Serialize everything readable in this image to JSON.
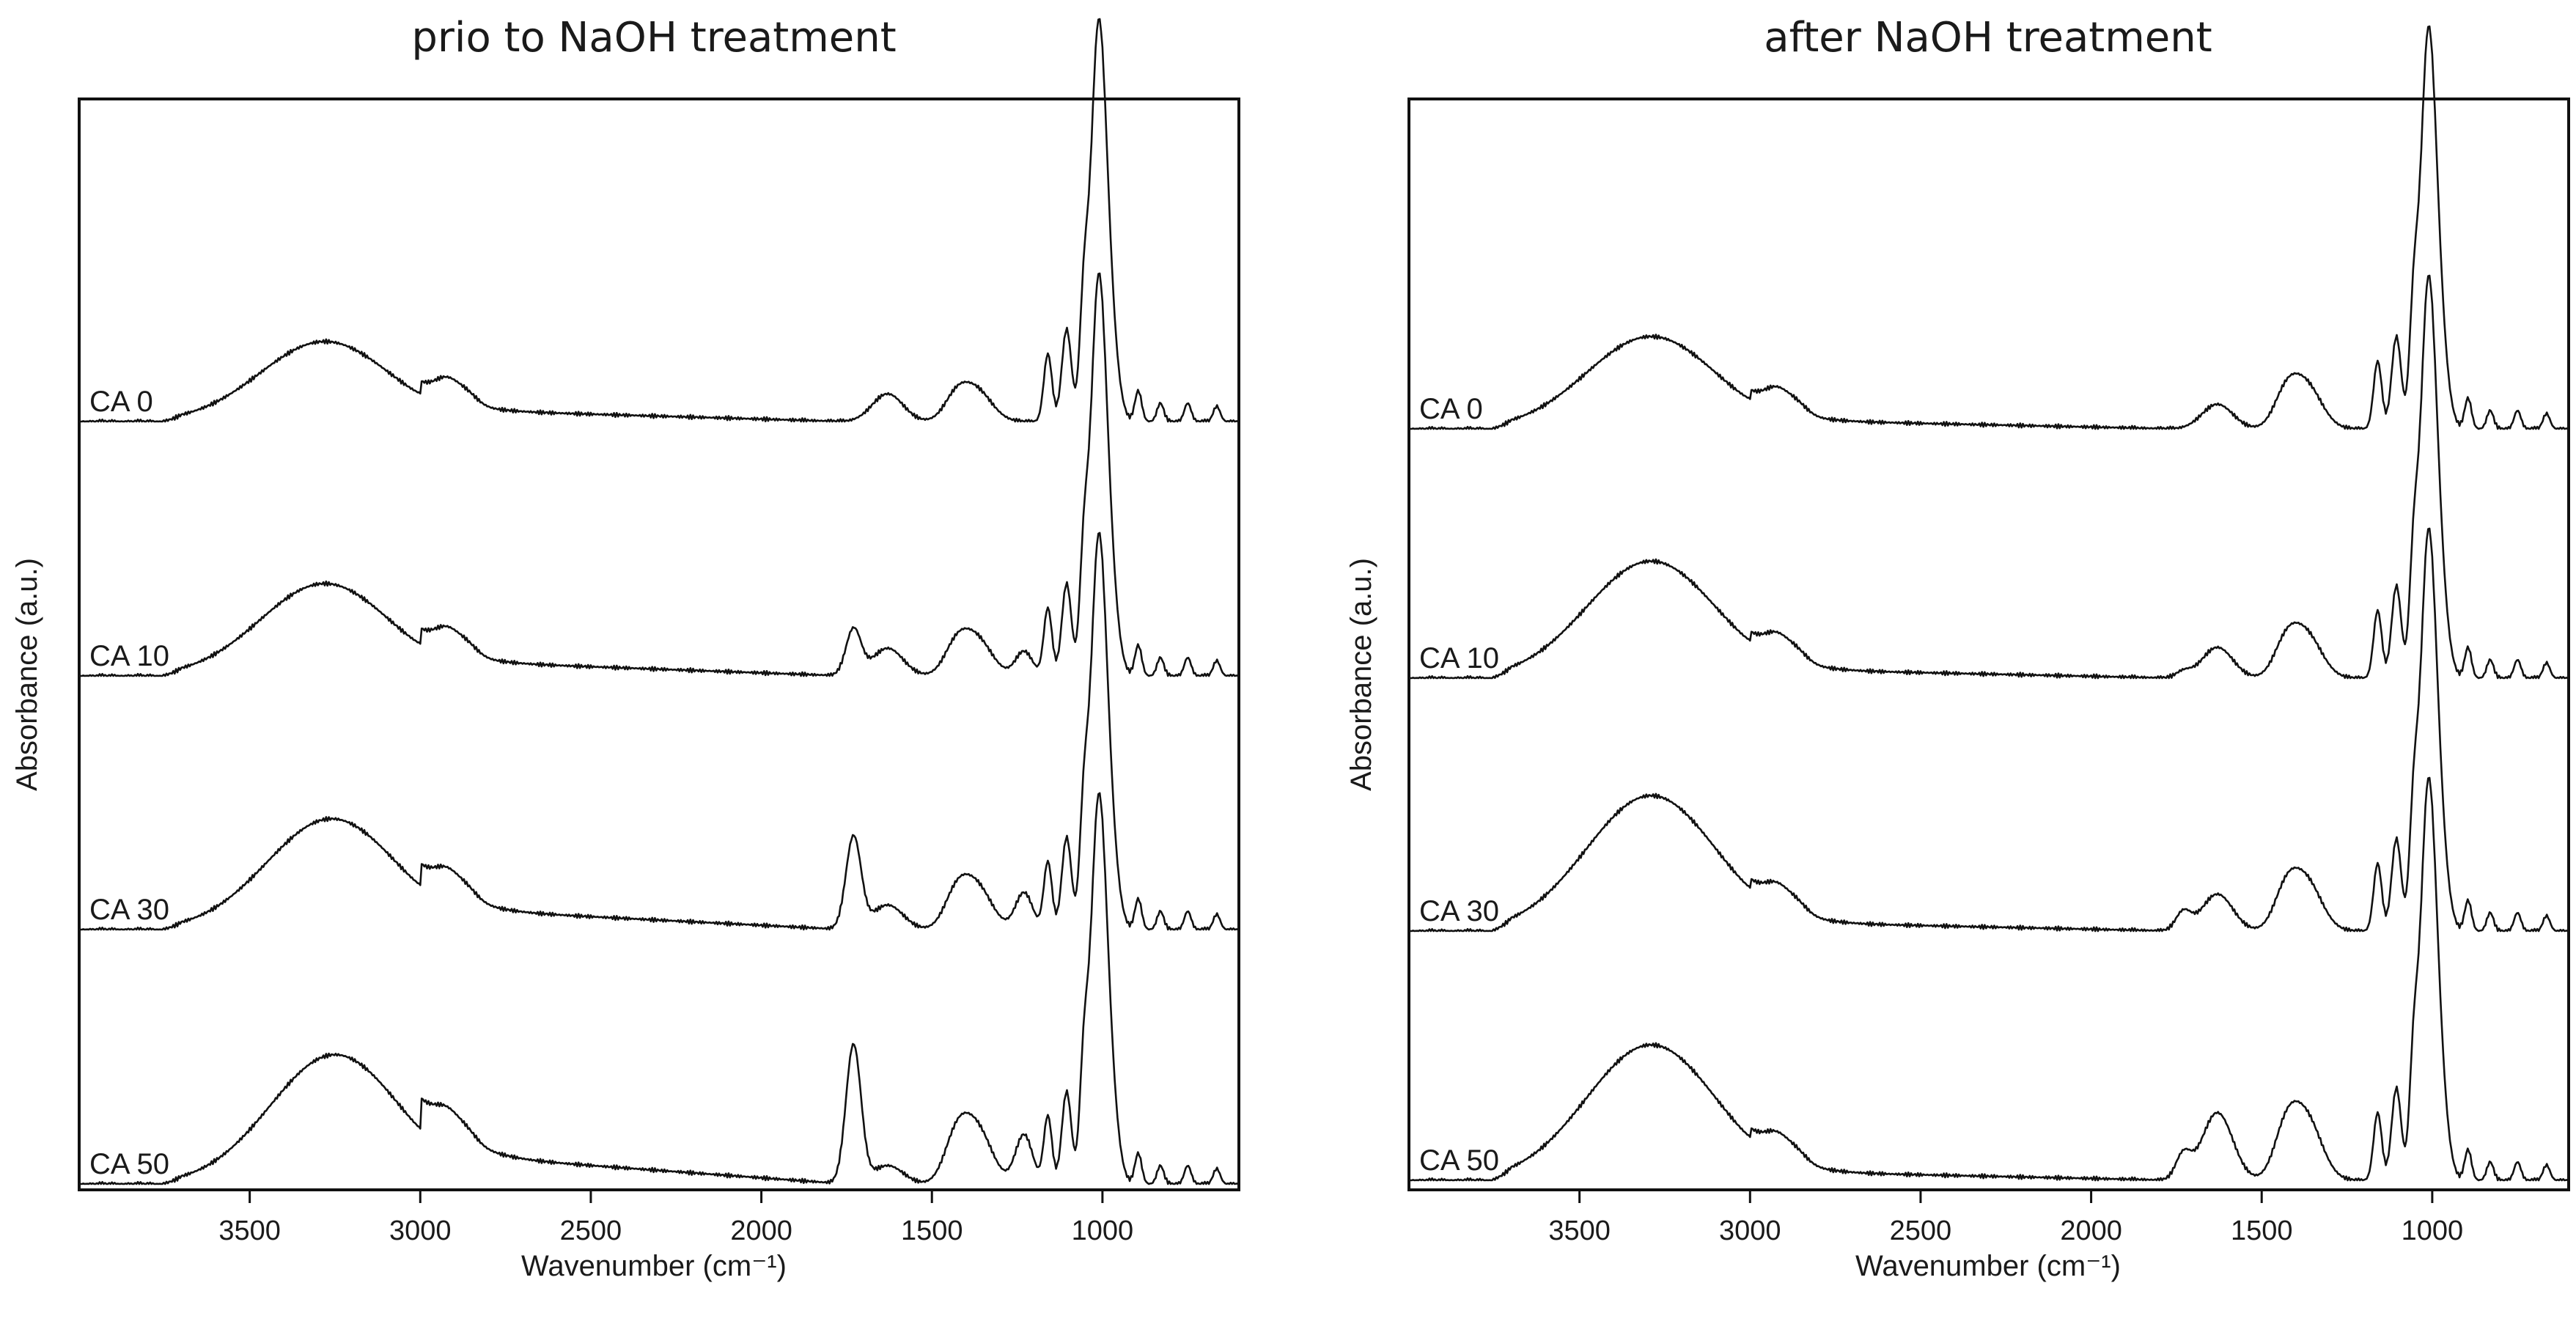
{
  "chart_data": [
    {
      "type": "line",
      "panel": "left",
      "title": "prio to NaOH treatment",
      "xlabel": "Wavenumber (cm⁻¹)",
      "ylabel": "Absorbance (a.u.)",
      "xlim": [
        4000,
        600
      ],
      "x_reversed": true,
      "xticks": [
        3500,
        3000,
        2500,
        2000,
        1500,
        1000
      ],
      "yticks": [],
      "series": [
        {
          "name": "CA 0",
          "acetyl": 0.0,
          "scale": 1.0,
          "oh": 0.26,
          "oh_center": 3280,
          "slope": 0.08,
          "band1230": 0.0,
          "band1370": 0.1,
          "band1640": 0.09,
          "main": 1.0
        },
        {
          "name": "CA 10",
          "acetyl": 0.15,
          "scale": 1.0,
          "oh": 0.3,
          "oh_center": 3280,
          "slope": 0.1,
          "band1230": 0.08,
          "band1370": 0.12,
          "band1640": 0.09,
          "main": 1.0
        },
        {
          "name": "CA 30",
          "acetyl": 0.3,
          "scale": 1.0,
          "oh": 0.36,
          "oh_center": 3260,
          "slope": 0.14,
          "band1230": 0.12,
          "band1370": 0.14,
          "band1640": 0.08,
          "main": 0.98
        },
        {
          "name": "CA 50",
          "acetyl": 0.45,
          "scale": 1.0,
          "oh": 0.42,
          "oh_center": 3250,
          "slope": 0.2,
          "band1230": 0.16,
          "band1370": 0.18,
          "band1640": 0.06,
          "main": 0.96
        }
      ]
    },
    {
      "type": "line",
      "panel": "right",
      "title": "after NaOH treatment",
      "xlabel": "Wavenumber (cm⁻¹)",
      "ylabel": "Absorbance (a.u.)",
      "xlim": [
        4000,
        600
      ],
      "x_reversed": true,
      "xticks": [
        3500,
        3000,
        2500,
        2000,
        1500,
        1000
      ],
      "yticks": [],
      "series": [
        {
          "name": "CA 0",
          "acetyl": 0.0,
          "scale": 1.0,
          "oh": 0.3,
          "oh_center": 3290,
          "slope": 0.06,
          "band1230": 0.0,
          "band1370": 0.14,
          "band1640": 0.08,
          "main": 1.0
        },
        {
          "name": "CA 10",
          "acetyl": 0.02,
          "scale": 1.0,
          "oh": 0.38,
          "oh_center": 3290,
          "slope": 0.06,
          "band1230": 0.0,
          "band1370": 0.14,
          "band1640": 0.1,
          "main": 1.0
        },
        {
          "name": "CA 30",
          "acetyl": 0.06,
          "scale": 1.0,
          "oh": 0.44,
          "oh_center": 3290,
          "slope": 0.06,
          "band1230": 0.0,
          "band1370": 0.16,
          "band1640": 0.12,
          "main": 1.0
        },
        {
          "name": "CA 50",
          "acetyl": 0.08,
          "scale": 1.0,
          "oh": 0.44,
          "oh_center": 3290,
          "slope": 0.06,
          "band1230": 0.0,
          "band1370": 0.2,
          "band1640": 0.22,
          "main": 1.0
        }
      ]
    }
  ]
}
